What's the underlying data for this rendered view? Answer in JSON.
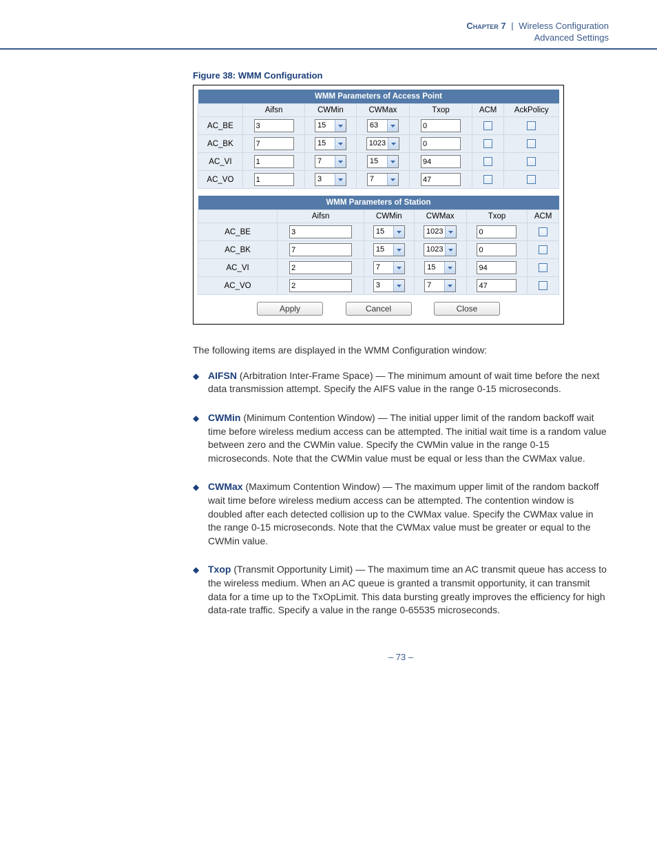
{
  "colors": {
    "accent": "#1c3f7a",
    "band": "#3a5a8a",
    "table_header_bg": "#537aa8",
    "table_cell_bg": "#e8eef5",
    "table_border": "#cfd8e6"
  },
  "header": {
    "chapter_label": "Chapter 7",
    "title": "Wireless Configuration",
    "subtitle": "Advanced Settings"
  },
  "figure": {
    "caption": "Figure 38:  WMM Configuration",
    "ap_table": {
      "title": "WMM Parameters of Access Point",
      "columns": [
        "",
        "Aifsn",
        "CWMin",
        "CWMax",
        "Txop",
        "ACM",
        "AckPolicy"
      ],
      "rows": [
        {
          "label": "AC_BE",
          "aifsn": "3",
          "cwmin": "15",
          "cwmax": "63",
          "txop": "0",
          "acm": false,
          "ackpolicy": false
        },
        {
          "label": "AC_BK",
          "aifsn": "7",
          "cwmin": "15",
          "cwmax": "1023",
          "txop": "0",
          "acm": false,
          "ackpolicy": false
        },
        {
          "label": "AC_VI",
          "aifsn": "1",
          "cwmin": "7",
          "cwmax": "15",
          "txop": "94",
          "acm": false,
          "ackpolicy": false
        },
        {
          "label": "AC_VO",
          "aifsn": "1",
          "cwmin": "3",
          "cwmax": "7",
          "txop": "47",
          "acm": false,
          "ackpolicy": false
        }
      ]
    },
    "sta_table": {
      "title": "WMM Parameters of Station",
      "columns": [
        "",
        "Aifsn",
        "CWMin",
        "CWMax",
        "Txop",
        "ACM"
      ],
      "rows": [
        {
          "label": "AC_BE",
          "aifsn": "3",
          "cwmin": "15",
          "cwmax": "1023",
          "txop": "0",
          "acm": false
        },
        {
          "label": "AC_BK",
          "aifsn": "7",
          "cwmin": "15",
          "cwmax": "1023",
          "txop": "0",
          "acm": false
        },
        {
          "label": "AC_VI",
          "aifsn": "2",
          "cwmin": "7",
          "cwmax": "15",
          "txop": "94",
          "acm": false
        },
        {
          "label": "AC_VO",
          "aifsn": "2",
          "cwmin": "3",
          "cwmax": "7",
          "txop": "47",
          "acm": false
        }
      ]
    },
    "buttons": {
      "apply": "Apply",
      "cancel": "Cancel",
      "close": "Close"
    }
  },
  "intro_text": "The following items are displayed in the WMM Configuration window:",
  "definitions": [
    {
      "term": "AIFSN",
      "body": " (Arbitration Inter-Frame Space) — The minimum amount of wait time before the next data transmission attempt. Specify the AIFS value in the range 0-15 microseconds."
    },
    {
      "term": "CWMin",
      "body": " (Minimum Contention Window) — The initial upper limit of the random backoff wait time before wireless medium access can be attempted. The initial wait time is a random value between zero and the CWMin value. Specify the CWMin value in the range 0-15 microseconds. Note that the CWMin value must be equal or less than the CWMax value."
    },
    {
      "term": "CWMax",
      "body": " (Maximum Contention Window) — The maximum upper limit of the random backoff wait time before wireless medium access can be attempted. The contention window is doubled after each detected collision up to the CWMax value. Specify the CWMax value in the range 0-15 microseconds. Note that the CWMax value must be greater or equal to the CWMin value."
    },
    {
      "term": "Txop",
      "body": " (Transmit Opportunity Limit) — The maximum time an AC transmit queue has access to the wireless medium. When an AC queue is granted a transmit opportunity, it can transmit data for a time up to the TxOpLimit. This data bursting greatly improves the efficiency for high data-rate traffic. Specify a value in the range 0-65535 microseconds."
    }
  ],
  "page_number": "–  73  –"
}
